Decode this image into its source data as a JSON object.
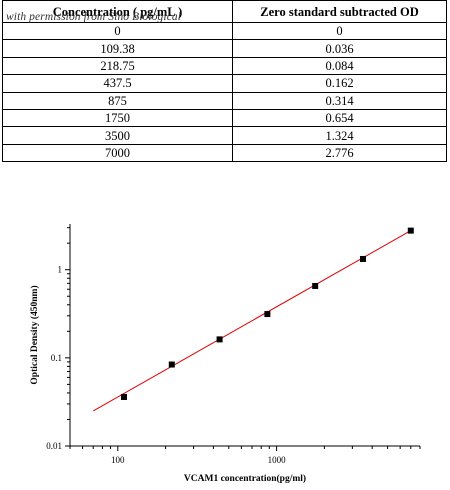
{
  "watermark": "with permission from Sino Biological",
  "table": {
    "headers": [
      "Concentration ( pg/mL )",
      "Zero standard subtracted OD"
    ],
    "rows": [
      [
        "0",
        "0"
      ],
      [
        "109.38",
        "0.036"
      ],
      [
        "218.75",
        "0.084"
      ],
      [
        "437.5",
        "0.162"
      ],
      [
        "875",
        "0.314"
      ],
      [
        "1750",
        "0.654"
      ],
      [
        "3500",
        "1.324"
      ],
      [
        "7000",
        "2.776"
      ]
    ]
  },
  "chart_data": {
    "type": "scatter",
    "xlabel": "VCAM1 concentration(pg/ml)",
    "ylabel": "Optical Density (450nm)",
    "x_scale": "log",
    "y_scale": "log",
    "xlim": [
      50,
      8000
    ],
    "ylim": [
      0.01,
      3.3
    ],
    "x_ticks": [
      100,
      1000
    ],
    "x_tick_labels": [
      "100",
      "1000"
    ],
    "y_ticks": [
      0.01,
      0.1,
      1
    ],
    "y_tick_labels": [
      "0.01",
      "0.1",
      "1"
    ],
    "grid": false,
    "points": {
      "x": [
        109.38,
        218.75,
        437.5,
        875,
        1750,
        3500,
        7000
      ],
      "y": [
        0.036,
        0.084,
        0.162,
        0.314,
        0.654,
        1.324,
        2.776
      ],
      "color": "#000000"
    },
    "fit_line": {
      "x": [
        70,
        7000
      ],
      "y": [
        0.025,
        2.776
      ],
      "color": "#e00000"
    }
  }
}
